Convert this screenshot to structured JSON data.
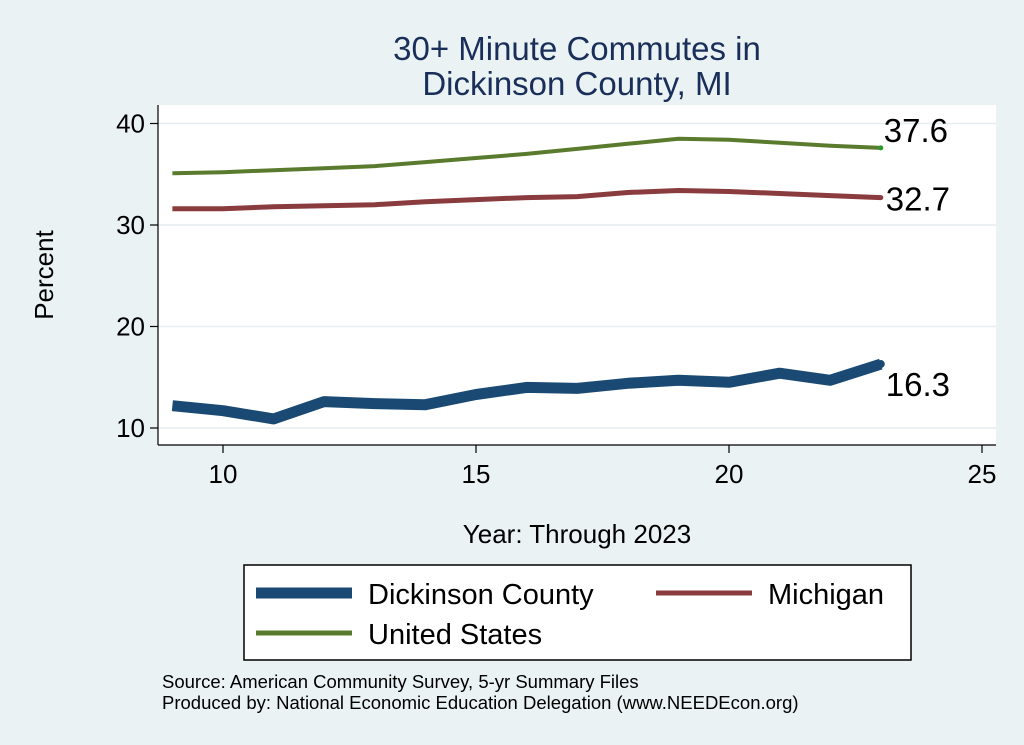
{
  "chart_data": {
    "type": "line",
    "title": [
      "30+ Minute Commutes in",
      "Dickinson County, MI"
    ],
    "xlabel": "Year: Through 2023",
    "ylabel": "Percent",
    "xlim": [
      9,
      25
    ],
    "ylim": [
      10,
      40
    ],
    "x_ticks": [
      10,
      15,
      20,
      25
    ],
    "y_ticks": [
      10,
      20,
      30,
      40
    ],
    "grid": true,
    "legend_position": "bottom",
    "x": [
      9,
      10,
      11,
      12,
      13,
      14,
      15,
      16,
      17,
      18,
      19,
      20,
      21,
      22,
      23
    ],
    "series": [
      {
        "name": "Dickinson County",
        "color": "#1a4a73",
        "values": [
          12.2,
          11.7,
          10.9,
          12.6,
          12.4,
          12.3,
          13.3,
          14.0,
          13.9,
          14.4,
          14.7,
          14.5,
          15.4,
          14.7,
          16.3
        ],
        "end_label": "16.3"
      },
      {
        "name": "Michigan",
        "color": "#8a3b3e",
        "values": [
          31.6,
          31.6,
          31.8,
          31.9,
          32.0,
          32.3,
          32.5,
          32.7,
          32.8,
          33.2,
          33.4,
          33.3,
          33.1,
          32.9,
          32.7
        ],
        "end_label": "32.7"
      },
      {
        "name": "United States",
        "color": "#5a7a2e",
        "values": [
          35.1,
          35.2,
          35.4,
          35.6,
          35.8,
          36.2,
          36.6,
          37.0,
          37.5,
          38.0,
          38.5,
          38.4,
          38.1,
          37.8,
          37.6
        ],
        "end_label": "37.6"
      }
    ]
  },
  "source_lines": [
    "Source: American Community Survey, 5-yr Summary Files",
    "Produced by: National Economic Education Delegation (www.NEEDEcon.org)"
  ]
}
